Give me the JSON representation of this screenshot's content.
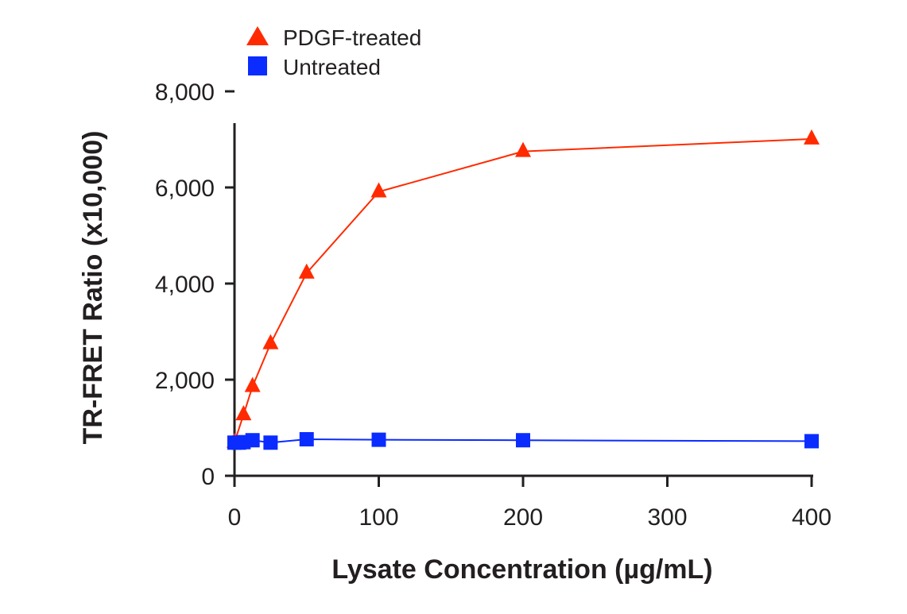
{
  "chart_data": {
    "type": "line",
    "title": "",
    "xlabel": "Lysate Concentration (µg/mL)",
    "ylabel": "TR-FRET Ratio (x10,000)",
    "xlim": [
      0,
      400
    ],
    "ylim": [
      0,
      8000
    ],
    "xticks": [
      "0",
      "100",
      "200",
      "300",
      "400"
    ],
    "yticks": [
      "0",
      "2,000",
      "4,000",
      "6,000",
      "8,000"
    ],
    "grid": false,
    "legend_position": "top-left",
    "series": [
      {
        "name": "PDGF-treated",
        "marker": "triangle",
        "color": "#ff2a00",
        "x": [
          0,
          6.25,
          12.5,
          25,
          50,
          100,
          200,
          400
        ],
        "y": [
          700,
          1270,
          1860,
          2750,
          4220,
          5910,
          6750,
          7010
        ]
      },
      {
        "name": "Untreated",
        "marker": "square",
        "color": "#0a2cff",
        "x": [
          0,
          3.125,
          6.25,
          12.5,
          25,
          50,
          100,
          200,
          400
        ],
        "y": [
          690,
          690,
          700,
          740,
          690,
          760,
          750,
          740,
          720
        ]
      }
    ]
  }
}
